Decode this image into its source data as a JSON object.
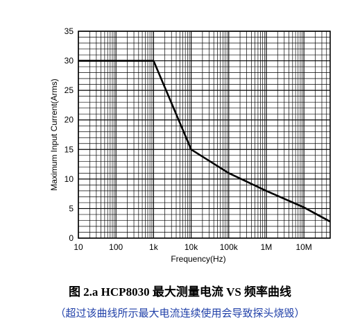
{
  "chart_data": {
    "type": "line",
    "xlabel": "Frequency(Hz)",
    "ylabel": "Maximum  Input Current(Arms)",
    "x_scale": "log",
    "xlim": [
      10,
      50000000
    ],
    "ylim": [
      0,
      35
    ],
    "x_ticks": [
      {
        "value": 10,
        "label": "10"
      },
      {
        "value": 100,
        "label": "100"
      },
      {
        "value": 1000,
        "label": "1k"
      },
      {
        "value": 10000,
        "label": "10k"
      },
      {
        "value": 100000,
        "label": "100k"
      },
      {
        "value": 1000000,
        "label": "1M"
      },
      {
        "value": 10000000,
        "label": "10M"
      }
    ],
    "y_ticks": [
      0,
      5,
      10,
      15,
      20,
      25,
      30,
      35
    ],
    "grid": true,
    "series": [
      {
        "x": [
          10,
          1000,
          10000,
          100000,
          1000000,
          10000000,
          50000000
        ],
        "y": [
          30,
          30,
          15,
          11,
          8,
          5.2,
          2.8
        ]
      }
    ],
    "colors": {
      "line": "#000000",
      "grid": "#000000",
      "text": "#000000"
    }
  },
  "caption": {
    "main": "图 2.a HCP8030 最大测量电流 VS 频率曲线",
    "sub": "（超过该曲线所示最大电流连续使用会导致探头烧毁）",
    "sub_color": "#1f3fa8"
  }
}
